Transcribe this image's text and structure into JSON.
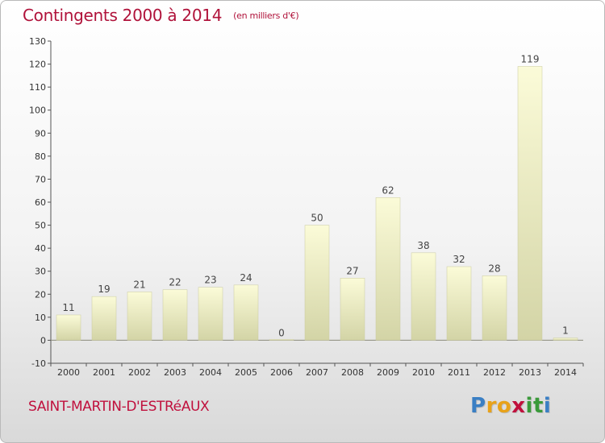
{
  "header": {
    "title": "Contingents 2000 à 2014",
    "subtitle": "(en milliers d'€)"
  },
  "footer": {
    "commune": "SAINT-MARTIN-D'ESTRéAUX",
    "logo": {
      "letters": [
        "P",
        "r",
        "o",
        "x",
        "i",
        "t",
        "i"
      ],
      "colors": [
        "#3a7fc4",
        "#e8a21a",
        "#e8a21a",
        "#c0103d",
        "#3a9a3a",
        "#3a9a3a",
        "#3a7fc4"
      ]
    }
  },
  "colors": {
    "title": "#b0123a",
    "bar_top": "#fbfbd8",
    "bar_bottom": "#d3d4a6"
  },
  "chart_data": {
    "type": "bar",
    "categories": [
      "2000",
      "2001",
      "2002",
      "2003",
      "2004",
      "2005",
      "2006",
      "2007",
      "2008",
      "2009",
      "2010",
      "2011",
      "2012",
      "2013",
      "2014"
    ],
    "values": [
      11,
      19,
      21,
      22,
      23,
      24,
      0,
      50,
      27,
      62,
      38,
      32,
      28,
      119,
      1
    ],
    "title": "Contingents 2000 à 2014",
    "subtitle": "(en milliers d'€)",
    "xlabel": "",
    "ylabel": "",
    "ylim": [
      -10,
      130
    ],
    "yticks": [
      -10,
      0,
      10,
      20,
      30,
      40,
      50,
      60,
      70,
      80,
      90,
      100,
      110,
      120,
      130
    ],
    "grid": false,
    "data_labels": true
  }
}
